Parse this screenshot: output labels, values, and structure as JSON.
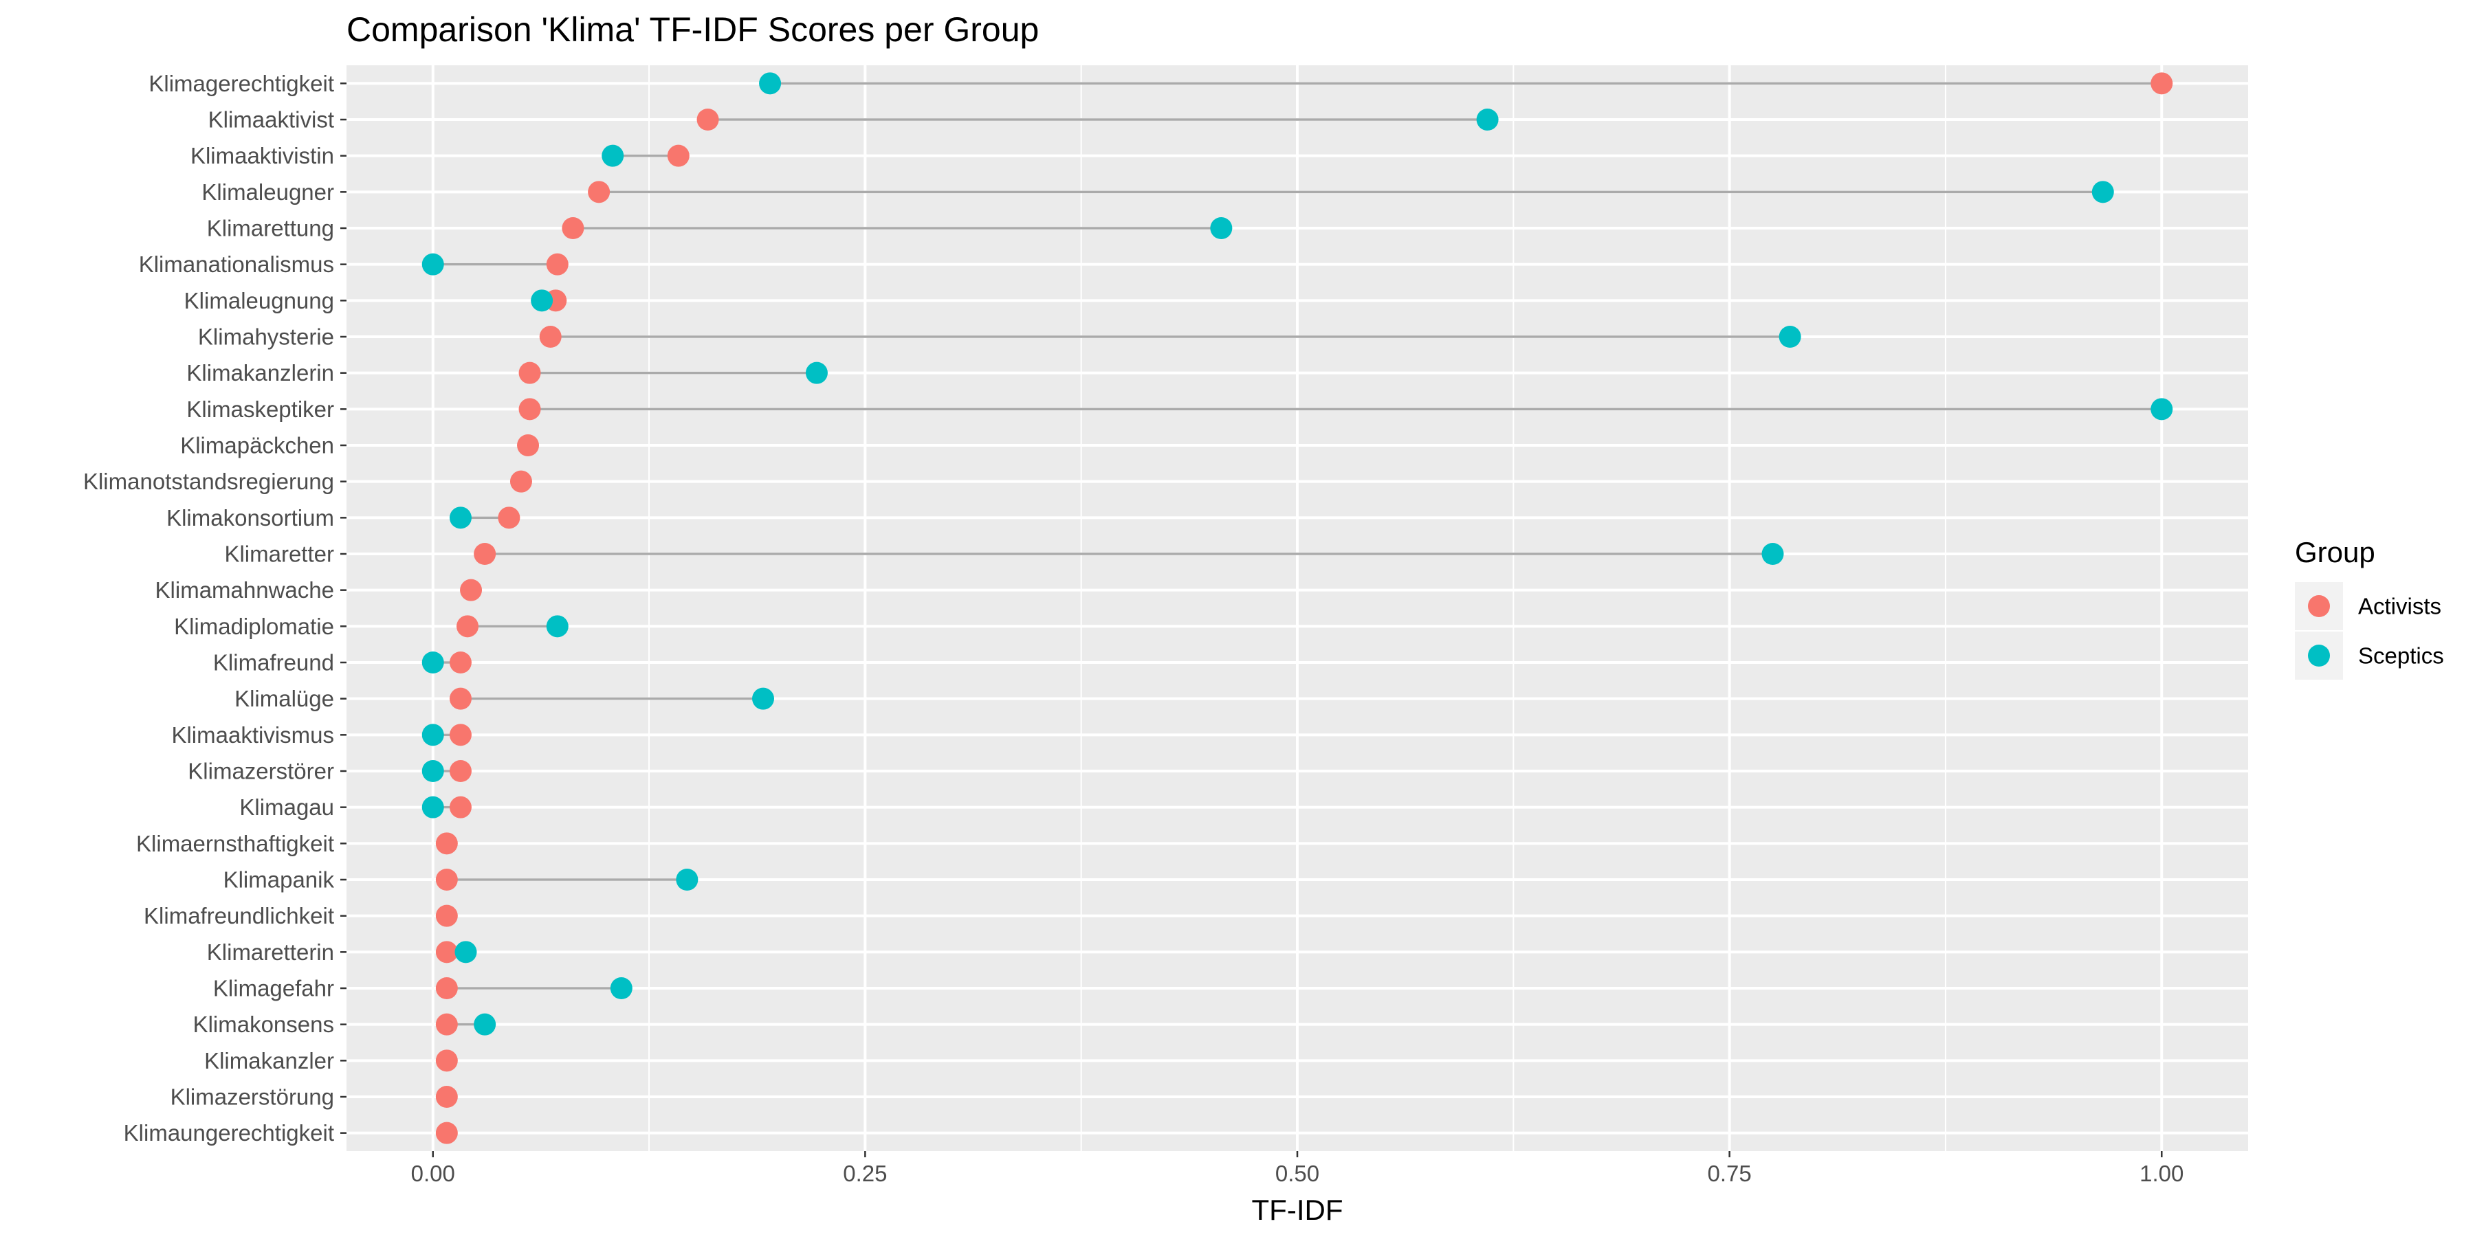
{
  "chart_data": {
    "type": "scatter",
    "subtype": "dumbbell",
    "title": "Comparison 'Klima' TF-IDF Scores per Group",
    "xlabel": "TF-IDF",
    "ylabel": "",
    "xlim": [
      -0.05,
      1.05
    ],
    "x_ticks": [
      0,
      0.25,
      0.5,
      0.75,
      1
    ],
    "x_tick_labels": [
      "0.00",
      "0.25",
      "0.50",
      "0.75",
      "1.00"
    ],
    "grid": true,
    "legend": {
      "title": "Group",
      "position": "right"
    },
    "categories": [
      "Klimagerechtigkeit",
      "Klimaaktivist",
      "Klimaaktivistin",
      "Klimaleugner",
      "Klimarettung",
      "Klimanationalismus",
      "Klimaleugnung",
      "Klimahysterie",
      "Klimakanzlerin",
      "Klimaskeptiker",
      "Klimapäckchen",
      "Klimanotstandsregierung",
      "Klimakonsortium",
      "Klimaretter",
      "Klimamahnwache",
      "Klimadiplomatie",
      "Klimafreund",
      "Klimalüge",
      "Klimaaktivismus",
      "Klimazerstörer",
      "Klimagau",
      "Klimaernsthaftigkeit",
      "Klimapanik",
      "Klimafreundlichkeit",
      "Klimaretterin",
      "Klimagefahr",
      "Klimakonsens",
      "Klimakanzler",
      "Klimazerstörung",
      "Klimaungerechtigkeit"
    ],
    "series": [
      {
        "name": "Activists",
        "color": "#F8766D",
        "values": [
          1.0,
          0.159,
          0.142,
          0.096,
          0.081,
          0.072,
          0.071,
          0.068,
          0.056,
          0.056,
          0.055,
          0.051,
          0.044,
          0.03,
          0.022,
          0.02,
          0.016,
          0.016,
          0.016,
          0.016,
          0.016,
          0.008,
          0.008,
          0.008,
          0.008,
          0.008,
          0.008,
          0.008,
          0.008,
          0.008
        ]
      },
      {
        "name": "Sceptics",
        "color": "#00BFC4",
        "values": [
          0.195,
          0.61,
          0.104,
          0.966,
          0.456,
          0.0,
          0.063,
          0.785,
          0.222,
          1.0,
          null,
          null,
          0.016,
          0.775,
          null,
          0.072,
          0.0,
          0.191,
          0.0,
          0.0,
          0.0,
          null,
          0.147,
          null,
          0.019,
          0.109,
          0.03,
          null,
          null,
          null
        ]
      }
    ]
  }
}
